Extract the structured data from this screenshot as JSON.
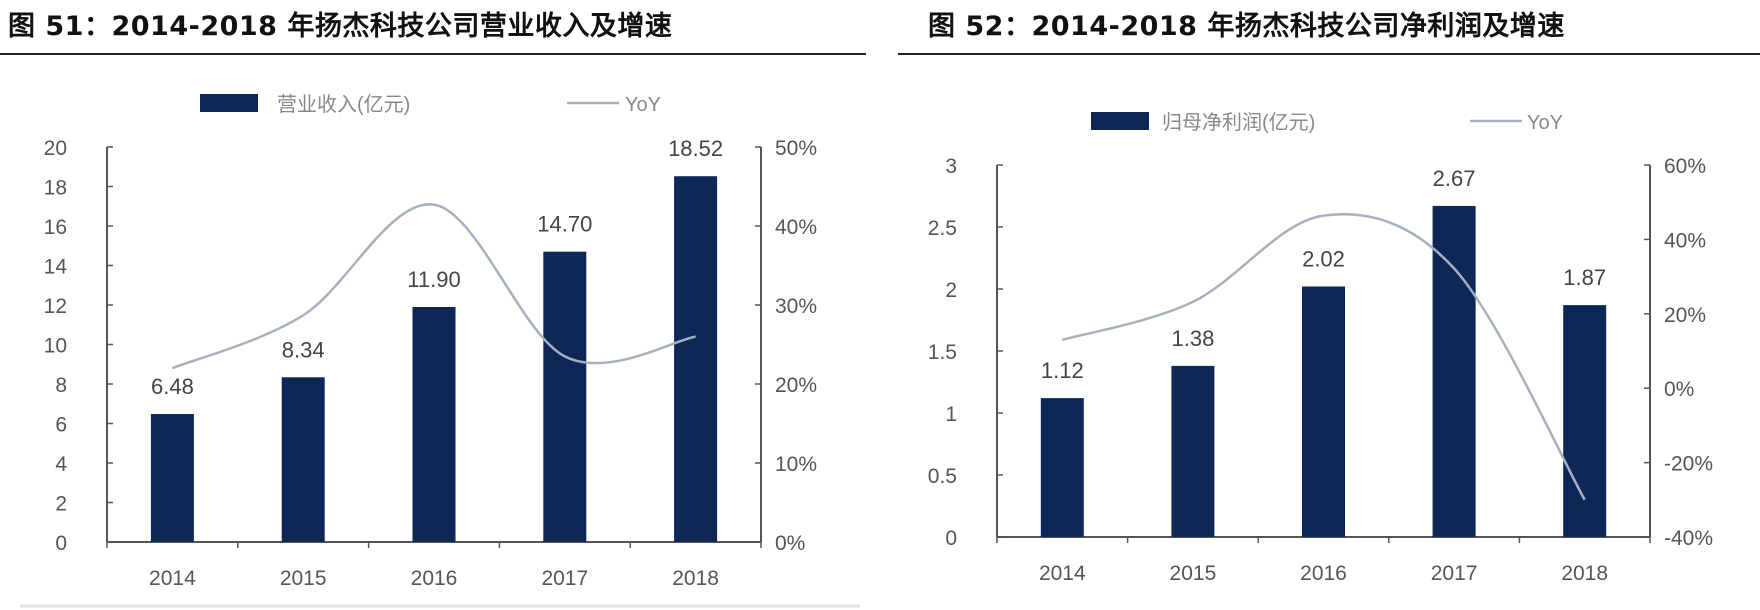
{
  "chart_data": [
    {
      "type": "bar",
      "title": "图 51：2014-2018 年扬杰科技公司营业收入及增速",
      "categories": [
        "2014",
        "2015",
        "2016",
        "2017",
        "2018"
      ],
      "series": [
        {
          "name": "营业收入(亿元)",
          "type": "bar",
          "axis": "left",
          "values": [
            6.48,
            8.34,
            11.9,
            14.7,
            18.52
          ],
          "labels": [
            "6.48",
            "8.34",
            "11.90",
            "14.70",
            "18.52"
          ]
        },
        {
          "name": "YoY",
          "type": "line",
          "axis": "right",
          "values": [
            22,
            28.7,
            42.7,
            23.5,
            26.0
          ]
        }
      ],
      "y_left": {
        "min": 0,
        "max": 20,
        "ticks": [
          "0",
          "2",
          "4",
          "6",
          "8",
          "10",
          "12",
          "14",
          "16",
          "18",
          "20"
        ]
      },
      "y_right": {
        "min": 0,
        "max": 50,
        "ticks": [
          "0%",
          "10%",
          "20%",
          "30%",
          "40%",
          "50%"
        ]
      },
      "legend": "top",
      "grid": false,
      "colors": {
        "bar": "#0d2757",
        "line": "#a7b0bf"
      }
    },
    {
      "type": "bar",
      "title": "图 52：2014-2018 年扬杰科技公司净利润及增速",
      "categories": [
        "2014",
        "2015",
        "2016",
        "2017",
        "2018"
      ],
      "series": [
        {
          "name": "归母净利润(亿元)",
          "type": "bar",
          "axis": "left",
          "values": [
            1.12,
            1.38,
            2.02,
            2.67,
            1.87
          ],
          "labels": [
            "1.12",
            "1.38",
            "2.02",
            "2.67",
            "1.87"
          ]
        },
        {
          "name": "YoY",
          "type": "line",
          "axis": "right",
          "values": [
            13,
            23.2,
            46.4,
            32.2,
            -30
          ]
        }
      ],
      "y_left": {
        "min": 0,
        "max": 3,
        "ticks": [
          "0",
          "0.5",
          "1",
          "1.5",
          "2",
          "2.5",
          "3"
        ]
      },
      "y_right": {
        "min": -40,
        "max": 60,
        "ticks": [
          "-40%",
          "-20%",
          "0%",
          "20%",
          "40%",
          "60%"
        ]
      },
      "legend": "top",
      "grid": false,
      "colors": {
        "bar": "#0d2757",
        "line": "#a7b0bf"
      }
    }
  ]
}
